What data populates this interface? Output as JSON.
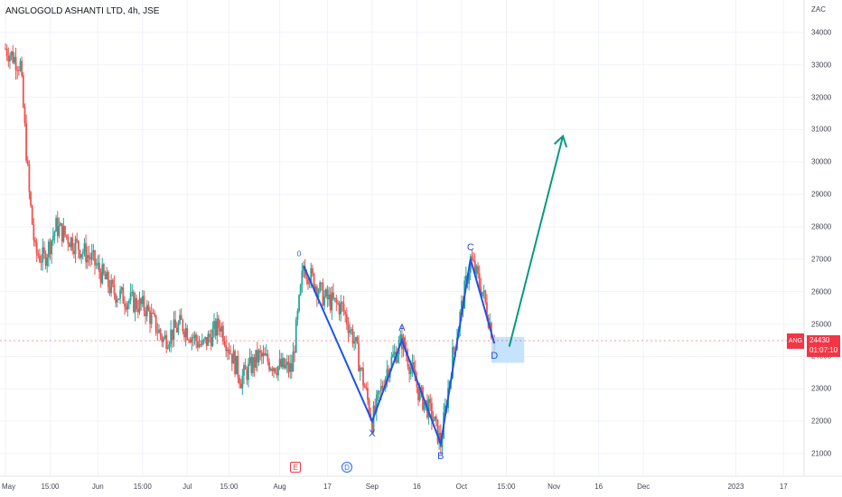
{
  "header": {
    "title": "ANGLOGOLD ASHANTI LTD, 4h, JSE",
    "currency": "ZAC"
  },
  "price": {
    "symbol": "ANG",
    "last": "24430",
    "countdown": "01:07:10"
  },
  "events": {
    "earnings": "E",
    "dividend": "D"
  },
  "colors": {
    "up": "#26a69a",
    "down": "#ef5350",
    "wave": "#1e53e5",
    "projection": "#089981",
    "zone": "#bbdefb",
    "grid": "#f0f3fa"
  },
  "chart_data": {
    "type": "candlestick",
    "ylim": [
      20300,
      35000
    ],
    "y_ticks": [
      "21000",
      "22000",
      "23000",
      "24000",
      "25000",
      "26000",
      "27000",
      "28000",
      "29000",
      "30000",
      "31000",
      "32000",
      "33000",
      "34000"
    ],
    "x_ticks": [
      {
        "label": "May",
        "date": "2022-05-01"
      },
      {
        "label": "15:00",
        "date": "2022-05-16"
      },
      {
        "label": "Jun",
        "date": "2022-06-01"
      },
      {
        "label": "15:00",
        "date": "2022-06-16"
      },
      {
        "label": "Jul",
        "date": "2022-07-01"
      },
      {
        "label": "15:00",
        "date": "2022-07-15"
      },
      {
        "label": "Aug",
        "date": "2022-08-01"
      },
      {
        "label": "17",
        "date": "2022-08-17"
      },
      {
        "label": "Sep",
        "date": "2022-09-01"
      },
      {
        "label": "16",
        "date": "2022-09-16"
      },
      {
        "label": "Oct",
        "date": "2022-10-01"
      },
      {
        "label": "15:00",
        "date": "2022-10-16"
      },
      {
        "label": "Nov",
        "date": "2022-11-01"
      },
      {
        "label": "16",
        "date": "2022-11-16"
      },
      {
        "label": "Dec",
        "date": "2022-12-01"
      },
      {
        "label": "2023",
        "date": "2023-01-01"
      },
      {
        "label": "17",
        "date": "2023-01-17"
      }
    ],
    "price_path": [
      {
        "date": "2022-05-01",
        "value": 33500
      },
      {
        "date": "2022-05-06",
        "value": 33000
      },
      {
        "date": "2022-05-09",
        "value": 29000
      },
      {
        "date": "2022-05-11",
        "value": 27200
      },
      {
        "date": "2022-05-14",
        "value": 27000
      },
      {
        "date": "2022-05-18",
        "value": 28000
      },
      {
        "date": "2022-05-24",
        "value": 27500
      },
      {
        "date": "2022-05-30",
        "value": 27000
      },
      {
        "date": "2022-06-06",
        "value": 26000
      },
      {
        "date": "2022-06-12",
        "value": 25700
      },
      {
        "date": "2022-06-17",
        "value": 25500
      },
      {
        "date": "2022-06-23",
        "value": 24500
      },
      {
        "date": "2022-06-29",
        "value": 25000
      },
      {
        "date": "2022-07-06",
        "value": 24300
      },
      {
        "date": "2022-07-12",
        "value": 25000
      },
      {
        "date": "2022-07-19",
        "value": 23300
      },
      {
        "date": "2022-07-25",
        "value": 24000
      },
      {
        "date": "2022-07-31",
        "value": 23700
      },
      {
        "date": "2022-08-05",
        "value": 23600
      },
      {
        "date": "2022-08-09",
        "value": 26800
      },
      {
        "date": "2022-08-16",
        "value": 25800
      },
      {
        "date": "2022-08-22",
        "value": 25500
      },
      {
        "date": "2022-08-26",
        "value": 24500
      },
      {
        "date": "2022-09-01",
        "value": 22000
      },
      {
        "date": "2022-09-06",
        "value": 23600
      },
      {
        "date": "2022-09-11",
        "value": 24500
      },
      {
        "date": "2022-09-17",
        "value": 22800
      },
      {
        "date": "2022-09-21",
        "value": 22200
      },
      {
        "date": "2022-09-24",
        "value": 21300
      },
      {
        "date": "2022-09-28",
        "value": 24000
      },
      {
        "date": "2022-10-04",
        "value": 27000
      },
      {
        "date": "2022-10-08",
        "value": 26000
      },
      {
        "date": "2022-10-12",
        "value": 24430
      }
    ],
    "waves": [
      {
        "label": "0",
        "date": "2022-08-09",
        "value": 26800
      },
      {
        "label": "X",
        "date": "2022-09-01",
        "value": 22000
      },
      {
        "label": "A",
        "date": "2022-09-11",
        "value": 24500
      },
      {
        "label": "B",
        "date": "2022-09-24",
        "value": 21300
      },
      {
        "label": "C",
        "date": "2022-10-04",
        "value": 27000
      },
      {
        "label": "D",
        "date": "2022-10-12",
        "value": 24400
      }
    ],
    "target_zone": {
      "from": "2022-10-11",
      "to": "2022-10-22",
      "low": 23800,
      "high": 24600
    },
    "projection": {
      "from_date": "2022-10-17",
      "from_value": 24300,
      "to_date": "2022-11-04",
      "to_value": 30800
    }
  }
}
